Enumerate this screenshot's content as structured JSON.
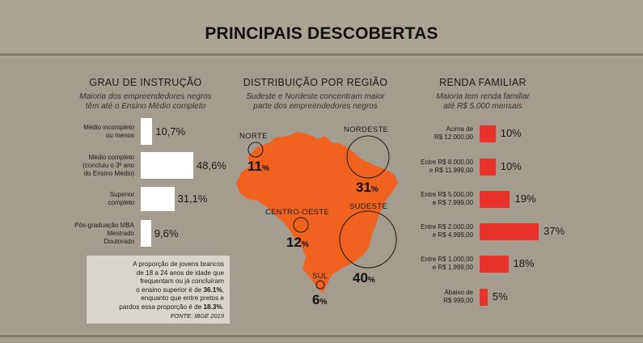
{
  "title": "PRINCIPAIS DESCOBERTAS",
  "sections": {
    "education": {
      "title": "GRAU DE INSTRUÇÃO",
      "subtitle": [
        "Maioria dos empreendedores negros",
        "têm até o Ensino Médio completo"
      ]
    },
    "region": {
      "title": "DISTRIBUIÇÃO POR REGIÃO",
      "subtitle": [
        "Sudeste e Nordeste concentram maior",
        "parte dos empreendedores negros"
      ]
    },
    "income": {
      "title": "RENDA FAMILIAR",
      "subtitle": [
        "Maioria tem renda familiar",
        "até R$ 5.000 mensais"
      ]
    }
  },
  "note": {
    "lines": [
      "A proporção de jovens brancos",
      "de 18 a 24 anos de idade que",
      "frequentam ou já concluíram",
      "o ensino superior é de ",
      "36.1%",
      ",",
      "enquanto que entre pretos e",
      "pardos essa proporção é de ",
      "18.3%",
      "."
    ],
    "source": "FONTE: IBGE 2019"
  },
  "colors": {
    "background": "#a49d8f",
    "education_bar": "#ffffff",
    "income_bar": "#e8332c",
    "map": "#f0621f"
  },
  "chart_data": [
    {
      "type": "bar",
      "title": "GRAU DE INSTRUÇÃO",
      "orientation": "horizontal",
      "categories": [
        [
          "Médio incompleto",
          "ou menos"
        ],
        [
          "Médio completo",
          "(concluiu o 3º ano",
          "do Ensino Médio)"
        ],
        [
          "Superior",
          "completo"
        ],
        [
          "Pós-graduação MBA",
          "Mestrado",
          "Doutorado"
        ]
      ],
      "values": [
        10.7,
        48.6,
        31.1,
        9.6
      ],
      "labels": [
        "10,7%",
        "48,6%",
        "31,1%",
        "9,6%"
      ],
      "unit": "%"
    },
    {
      "type": "bubble-map",
      "title": "DISTRIBUIÇÃO POR REGIÃO",
      "regions": [
        {
          "name": "NORTE",
          "value": 11,
          "label": "11",
          "suffix": "%"
        },
        {
          "name": "NORDESTE",
          "value": 31,
          "label": "31",
          "suffix": "%"
        },
        {
          "name": "CENTRO-OESTE",
          "value": 12,
          "label": "12",
          "suffix": "%"
        },
        {
          "name": "SUDESTE",
          "value": 40,
          "label": "40",
          "suffix": "%"
        },
        {
          "name": "SUL",
          "value": 6,
          "label": "6",
          "suffix": "%"
        }
      ]
    },
    {
      "type": "bar",
      "title": "RENDA FAMILIAR",
      "orientation": "horizontal",
      "categories": [
        [
          "Acima de",
          "R$ 12.000,00"
        ],
        [
          "Entre R$ 8.000,00",
          "e R$ 11.999,00"
        ],
        [
          "Entre R$ 5.000,00",
          "e R$ 7.999,00"
        ],
        [
          "Entre R$ 2.000,00",
          "e R$ 4.999,00"
        ],
        [
          "Entre R$ 1.000,00",
          "e R$ 1.999,00"
        ],
        [
          "Abaixo de",
          "R$ 999,00"
        ]
      ],
      "values": [
        10,
        10,
        19,
        37,
        18,
        5
      ],
      "labels": [
        "10%",
        "10%",
        "19%",
        "37%",
        "18%",
        "5%"
      ],
      "unit": "%"
    }
  ]
}
